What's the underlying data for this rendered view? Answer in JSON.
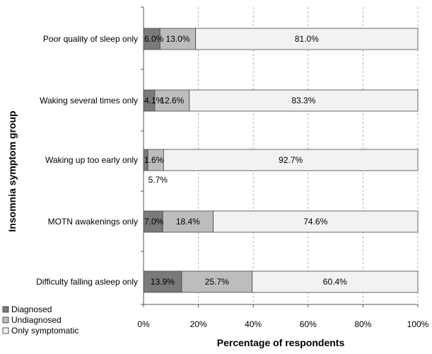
{
  "chart_data": {
    "type": "bar",
    "orientation": "horizontal",
    "stacked": true,
    "ylabel": "Insomnia symptom group",
    "xlabel": "Percentage of respondents",
    "xlim": [
      0,
      100
    ],
    "x_ticks": [
      "0%",
      "20%",
      "40%",
      "60%",
      "80%",
      "100%"
    ],
    "grid": "vertical dashed",
    "legend_position": "bottom-left",
    "categories": [
      "Poor quality of sleep only",
      "Waking several times only",
      "Waking up too early only",
      "MOTN awakenings only",
      "Difficulty falling asleep only"
    ],
    "series": [
      {
        "name": "Diagnosed",
        "color": "#7a7a7a",
        "values": [
          6.0,
          4.1,
          1.6,
          7.0,
          13.9
        ],
        "labels": [
          "6.0%",
          "4.1%",
          "1.6%",
          "7.0%",
          "13.9%"
        ]
      },
      {
        "name": "Undiagnosed",
        "color": "#bdbdbd",
        "values": [
          13.0,
          12.6,
          5.7,
          18.4,
          25.7
        ],
        "labels": [
          "13.0%",
          "12.6%",
          "5.7%",
          "18.4%",
          "25.7%"
        ]
      },
      {
        "name": "Only symptomatic",
        "color": "#f2f2f2",
        "values": [
          81.0,
          83.3,
          92.7,
          74.6,
          60.4
        ],
        "labels": [
          "81.0%",
          "83.3%",
          "92.7%",
          "74.6%",
          "60.4%"
        ]
      }
    ]
  }
}
